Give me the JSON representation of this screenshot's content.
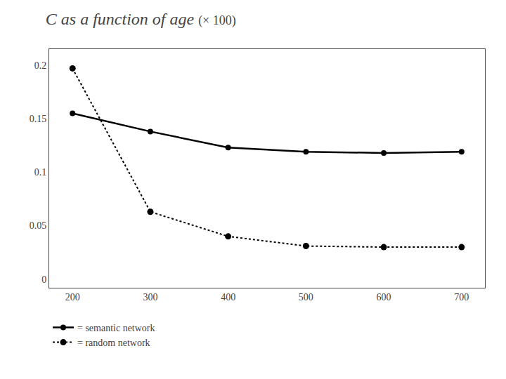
{
  "chart_data": {
    "type": "line",
    "title": "C as a function of age",
    "subtitle": "(× 100)",
    "x": [
      200,
      300,
      400,
      500,
      600,
      700
    ],
    "series": [
      {
        "name": "= semantic network",
        "color": "#000000",
        "line_style": "solid",
        "marker": "circle",
        "values": [
          0.155,
          0.138,
          0.123,
          0.119,
          0.118,
          0.119
        ]
      },
      {
        "name": "= random network",
        "color": "#000000",
        "line_style": "dotted",
        "marker": "circle",
        "values": [
          0.197,
          0.063,
          0.04,
          0.031,
          0.03,
          0.03
        ]
      }
    ],
    "xlim": [
      170,
      730
    ],
    "xticks": [
      200,
      300,
      400,
      500,
      600,
      700
    ],
    "ylim": [
      -0.008,
      0.215
    ],
    "yticks": [
      0,
      0.05,
      0.1,
      0.15,
      0.2
    ],
    "grid": false,
    "legend": "bottom"
  }
}
